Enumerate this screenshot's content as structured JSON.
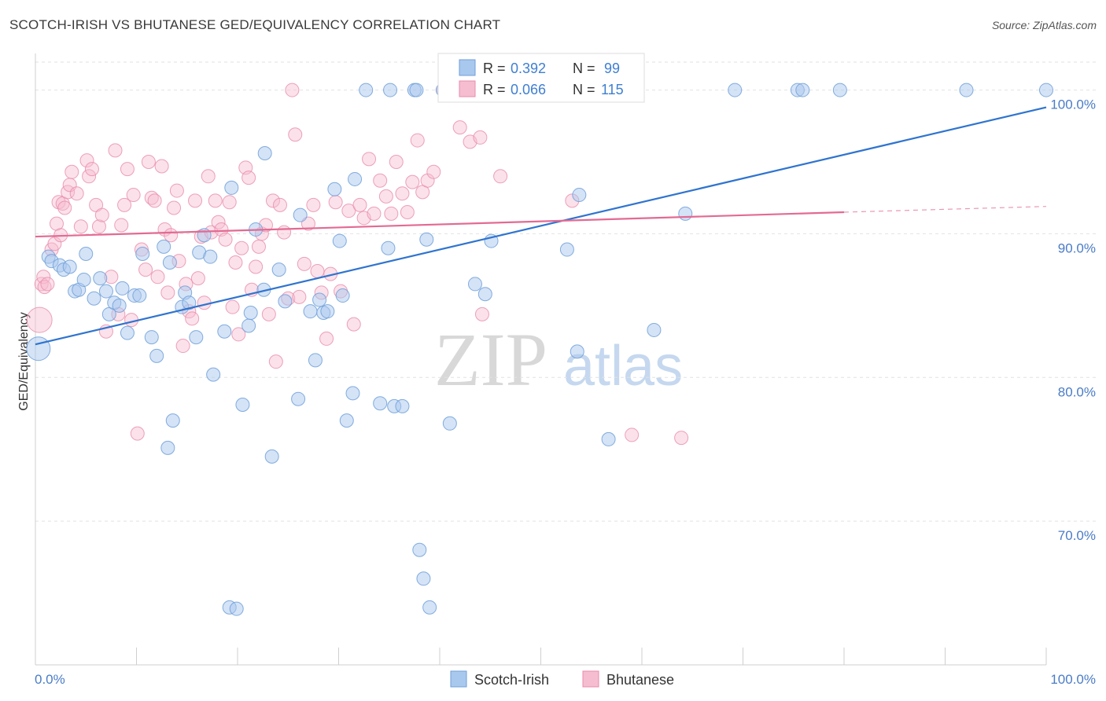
{
  "header": {
    "title": "SCOTCH-IRISH VS BHUTANESE GED/EQUIVALENCY CORRELATION CHART",
    "source": "Source: ZipAtlas.com"
  },
  "watermark": {
    "zip": "ZIP",
    "atlas": "atlas"
  },
  "colors": {
    "blue_fill": "#a9c8ee",
    "blue_stroke": "#6f9fd9",
    "blue_line": "#2f74cf",
    "pink_fill": "#f6bdd0",
    "pink_stroke": "#e88bab",
    "pink_line": "#e36a93",
    "tick_text": "#4a7cc7"
  },
  "stats_legend": {
    "rows": [
      {
        "r_label": "R =",
        "r_value": "0.392",
        "n_label": "N =",
        "n_value": "99"
      },
      {
        "r_label": "R =",
        "r_value": "0.066",
        "n_label": "N =",
        "n_value": "115"
      }
    ]
  },
  "bottom_legend": {
    "items": [
      "Scotch-Irish",
      "Bhutanese"
    ]
  },
  "chart_data": {
    "type": "scatter",
    "title": "SCOTCH-IRISH VS BHUTANESE GED/EQUIVALENCY CORRELATION CHART",
    "xlabel": "",
    "ylabel": "GED/Equivalency",
    "xlim": [
      0,
      100
    ],
    "ylim": [
      60,
      102
    ],
    "x_tick_labels": [
      "0.0%",
      "100.0%"
    ],
    "y_ticks": [
      {
        "value": 70,
        "label": "70.0%"
      },
      {
        "value": 80,
        "label": "80.0%"
      },
      {
        "value": 90,
        "label": "90.0%"
      },
      {
        "value": 100,
        "label": "100.0%"
      }
    ],
    "grid": true,
    "legend_position": "top-center",
    "series": [
      {
        "name": "Scotch-Irish",
        "R": 0.392,
        "N": 99,
        "trend": {
          "x": [
            0,
            100
          ],
          "y": [
            82.3,
            98.8
          ]
        },
        "points": [
          [
            0.3,
            82
          ],
          [
            1.3,
            88.4
          ],
          [
            1.6,
            88.1
          ],
          [
            2.4,
            87.8
          ],
          [
            2.8,
            87.5
          ],
          [
            3.4,
            87.7
          ],
          [
            3.9,
            86
          ],
          [
            4.3,
            86.1
          ],
          [
            5,
            88.6
          ],
          [
            4.8,
            86.8
          ],
          [
            5.8,
            85.5
          ],
          [
            6.4,
            86.9
          ],
          [
            7,
            86
          ],
          [
            7.3,
            84.4
          ],
          [
            7.8,
            85.2
          ],
          [
            8.3,
            85
          ],
          [
            8.6,
            86.2
          ],
          [
            9.1,
            83.1
          ],
          [
            9.8,
            85.7
          ],
          [
            10.3,
            85.7
          ],
          [
            10.6,
            88.6
          ],
          [
            11.5,
            82.8
          ],
          [
            12,
            81.5
          ],
          [
            12.7,
            89.1
          ],
          [
            13.3,
            88
          ],
          [
            13.6,
            77
          ],
          [
            13.1,
            75.1
          ],
          [
            14.5,
            84.9
          ],
          [
            14.8,
            85.9
          ],
          [
            15.2,
            85.2
          ],
          [
            15.9,
            82.8
          ],
          [
            16.2,
            88.7
          ],
          [
            16.7,
            89.9
          ],
          [
            17.3,
            88.4
          ],
          [
            17.6,
            80.2
          ],
          [
            18.7,
            83.2
          ],
          [
            19.2,
            64
          ],
          [
            19.4,
            93.2
          ],
          [
            19.9,
            63.9
          ],
          [
            20.5,
            78.1
          ],
          [
            21.1,
            83.6
          ],
          [
            21.3,
            84.5
          ],
          [
            21.8,
            90.3
          ],
          [
            22.6,
            86.1
          ],
          [
            22.7,
            95.6
          ],
          [
            23.4,
            74.5
          ],
          [
            24.1,
            87.5
          ],
          [
            24.7,
            85.3
          ],
          [
            26,
            78.5
          ],
          [
            26.2,
            91.3
          ],
          [
            27.2,
            84.6
          ],
          [
            27.7,
            81.2
          ],
          [
            28.1,
            85.4
          ],
          [
            28.5,
            84.5
          ],
          [
            28.9,
            84.6
          ],
          [
            29.6,
            93.1
          ],
          [
            30.1,
            89.5
          ],
          [
            30.4,
            85.7
          ],
          [
            30.8,
            77
          ],
          [
            31.4,
            78.9
          ],
          [
            31.6,
            93.8
          ],
          [
            32.7,
            100
          ],
          [
            34.1,
            78.2
          ],
          [
            34.9,
            89
          ],
          [
            35.1,
            100
          ],
          [
            35.5,
            78
          ],
          [
            36.3,
            78
          ],
          [
            37.5,
            100
          ],
          [
            37.7,
            100
          ],
          [
            38,
            68
          ],
          [
            38.4,
            66
          ],
          [
            38.7,
            89.6
          ],
          [
            39,
            64
          ],
          [
            40.3,
            100
          ],
          [
            41,
            76.8
          ],
          [
            42.1,
            100
          ],
          [
            42.8,
            100
          ],
          [
            43.5,
            86.5
          ],
          [
            44,
            100
          ],
          [
            44.5,
            85.8
          ],
          [
            45.1,
            89.5
          ],
          [
            45.7,
            100
          ],
          [
            46.4,
            100
          ],
          [
            48,
            100
          ],
          [
            49.5,
            100
          ],
          [
            50.2,
            100
          ],
          [
            50.8,
            100
          ],
          [
            52.6,
            88.9
          ],
          [
            53.6,
            81.8
          ],
          [
            53.8,
            92.7
          ],
          [
            56,
            100
          ],
          [
            56.7,
            75.7
          ],
          [
            57.3,
            100
          ],
          [
            61.2,
            83.3
          ],
          [
            64.3,
            91.4
          ],
          [
            69.2,
            100
          ],
          [
            75.4,
            100
          ],
          [
            75.9,
            100
          ],
          [
            79.6,
            100
          ],
          [
            92.1,
            100
          ],
          [
            100,
            100
          ]
        ]
      },
      {
        "name": "Bhutanese",
        "R": 0.066,
        "N": 115,
        "trend": {
          "x": [
            0,
            80
          ],
          "y": [
            89.8,
            91.5
          ],
          "dash_to": [
            100,
            91.9
          ]
        },
        "points": [
          [
            0.4,
            84
          ],
          [
            0.6,
            86.5
          ],
          [
            0.8,
            87
          ],
          [
            0.9,
            86.3
          ],
          [
            1.2,
            86.5
          ],
          [
            1.6,
            88.9
          ],
          [
            1.9,
            89.3
          ],
          [
            2.1,
            90.7
          ],
          [
            2.3,
            92.2
          ],
          [
            2.5,
            89.9
          ],
          [
            2.7,
            92.1
          ],
          [
            2.9,
            91.8
          ],
          [
            3.2,
            92.9
          ],
          [
            3.4,
            93.4
          ],
          [
            3.6,
            94.3
          ],
          [
            4.1,
            92.8
          ],
          [
            4.5,
            90.5
          ],
          [
            5.1,
            95.1
          ],
          [
            5.3,
            94
          ],
          [
            5.6,
            94.5
          ],
          [
            6,
            92
          ],
          [
            6.3,
            90.5
          ],
          [
            6.6,
            91.3
          ],
          [
            7,
            83.2
          ],
          [
            7.5,
            87
          ],
          [
            7.9,
            95.8
          ],
          [
            8.2,
            84.4
          ],
          [
            8.5,
            90.6
          ],
          [
            8.8,
            92
          ],
          [
            9.1,
            94.5
          ],
          [
            9.5,
            84
          ],
          [
            9.7,
            92.7
          ],
          [
            10.1,
            76.1
          ],
          [
            10.5,
            88.9
          ],
          [
            10.9,
            87.5
          ],
          [
            11.2,
            95
          ],
          [
            11.5,
            92.5
          ],
          [
            11.8,
            92.3
          ],
          [
            12.1,
            87
          ],
          [
            12.5,
            94.7
          ],
          [
            12.8,
            90.3
          ],
          [
            13.1,
            85.9
          ],
          [
            13.4,
            89.9
          ],
          [
            13.7,
            91.8
          ],
          [
            14,
            93
          ],
          [
            14.2,
            88.1
          ],
          [
            14.6,
            82.2
          ],
          [
            14.9,
            86.5
          ],
          [
            15.2,
            84.6
          ],
          [
            15.5,
            84.1
          ],
          [
            15.8,
            92.3
          ],
          [
            16.1,
            86.9
          ],
          [
            16.4,
            89.8
          ],
          [
            16.7,
            85.2
          ],
          [
            17.1,
            94
          ],
          [
            17.4,
            90.1
          ],
          [
            17.8,
            92.3
          ],
          [
            18.1,
            90.8
          ],
          [
            18.4,
            90.3
          ],
          [
            18.8,
            89.6
          ],
          [
            19.2,
            92.2
          ],
          [
            19.5,
            84.9
          ],
          [
            19.8,
            88
          ],
          [
            20.1,
            83
          ],
          [
            20.4,
            89
          ],
          [
            20.8,
            94.6
          ],
          [
            21.1,
            93.9
          ],
          [
            21.4,
            86.1
          ],
          [
            21.8,
            87.7
          ],
          [
            22.1,
            89.1
          ],
          [
            22.4,
            90
          ],
          [
            22.8,
            90.6
          ],
          [
            23.1,
            84.4
          ],
          [
            23.5,
            92.3
          ],
          [
            23.8,
            81.1
          ],
          [
            24.2,
            92
          ],
          [
            24.6,
            90.1
          ],
          [
            25,
            85.5
          ],
          [
            25.4,
            100
          ],
          [
            25.7,
            96.9
          ],
          [
            26.1,
            85.6
          ],
          [
            26.6,
            87.9
          ],
          [
            27,
            90.7
          ],
          [
            27.5,
            92
          ],
          [
            27.9,
            87.4
          ],
          [
            28.3,
            85.9
          ],
          [
            28.8,
            82.7
          ],
          [
            29.2,
            87.2
          ],
          [
            29.7,
            92.2
          ],
          [
            30.2,
            86
          ],
          [
            31,
            91.6
          ],
          [
            31.5,
            83.7
          ],
          [
            32.1,
            92
          ],
          [
            32.5,
            91.1
          ],
          [
            33,
            95.2
          ],
          [
            33.5,
            91.4
          ],
          [
            34.1,
            93.7
          ],
          [
            34.7,
            92.6
          ],
          [
            35.2,
            91.4
          ],
          [
            35.7,
            95
          ],
          [
            36.3,
            92.8
          ],
          [
            36.8,
            91.5
          ],
          [
            37.3,
            93.6
          ],
          [
            37.8,
            96.5
          ],
          [
            38.3,
            92.9
          ],
          [
            38.8,
            93.7
          ],
          [
            39.4,
            94.3
          ],
          [
            40.4,
            100
          ],
          [
            42,
            97.4
          ],
          [
            43,
            96.4
          ],
          [
            44,
            96.7
          ],
          [
            44.2,
            84.4
          ],
          [
            46,
            94
          ],
          [
            53.1,
            92.3
          ],
          [
            59,
            76
          ],
          [
            63.9,
            75.8
          ]
        ]
      }
    ]
  }
}
